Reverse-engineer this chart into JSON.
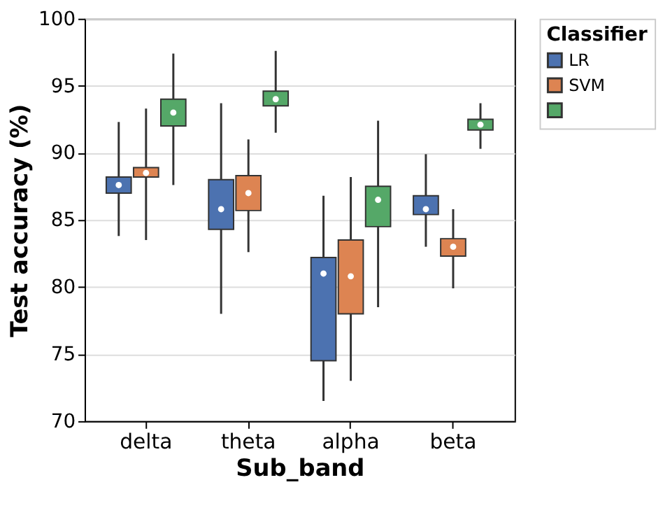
{
  "chart_data": {
    "type": "box",
    "xlabel": "Sub_band",
    "ylabel": "Test accuracy (%)",
    "legend_title": "Classifier",
    "legend": "top right",
    "grid": "y",
    "categories": [
      "delta",
      "theta",
      "alpha",
      "beta"
    ],
    "ylim": [
      70,
      100
    ],
    "yticks": [
      70,
      75,
      80,
      85,
      90,
      95,
      100
    ],
    "series": [
      {
        "name": "LR",
        "color": "#4c72b0",
        "boxes": [
          {
            "low": 83.8,
            "q1": 87,
            "median": 87.6,
            "q3": 88.2,
            "high": 92.3
          },
          {
            "low": 78,
            "q1": 84.3,
            "median": 85.8,
            "q3": 88,
            "high": 93.7
          },
          {
            "low": 71.5,
            "q1": 74.5,
            "median": 81,
            "q3": 82.2,
            "high": 86.8
          },
          {
            "low": 83,
            "q1": 85.4,
            "median": 85.8,
            "q3": 86.8,
            "high": 89.9
          }
        ]
      },
      {
        "name": "SVM",
        "color": "#dd8452",
        "boxes": [
          {
            "low": 83.5,
            "q1": 88.2,
            "median": 88.5,
            "q3": 88.9,
            "high": 93.3
          },
          {
            "low": 82.6,
            "q1": 85.7,
            "median": 87,
            "q3": 88.3,
            "high": 91
          },
          {
            "low": 73,
            "q1": 78,
            "median": 80.8,
            "q3": 83.5,
            "high": 88.2
          },
          {
            "low": 79.9,
            "q1": 82.3,
            "median": 83,
            "q3": 83.6,
            "high": 85.8
          }
        ]
      },
      {
        "color": "#55a868",
        "boxes": [
          {
            "low": 87.6,
            "q1": 92,
            "median": 93,
            "q3": 94,
            "high": 97.4
          },
          {
            "low": 91.5,
            "q1": 93.5,
            "median": 94,
            "q3": 94.6,
            "high": 97.6
          },
          {
            "low": 78.5,
            "q1": 84.5,
            "median": 86.5,
            "q3": 87.5,
            "high": 92.4
          },
          {
            "low": 90.3,
            "q1": 91.7,
            "median": 92.1,
            "q3": 92.5,
            "high": 93.7
          }
        ]
      }
    ]
  }
}
